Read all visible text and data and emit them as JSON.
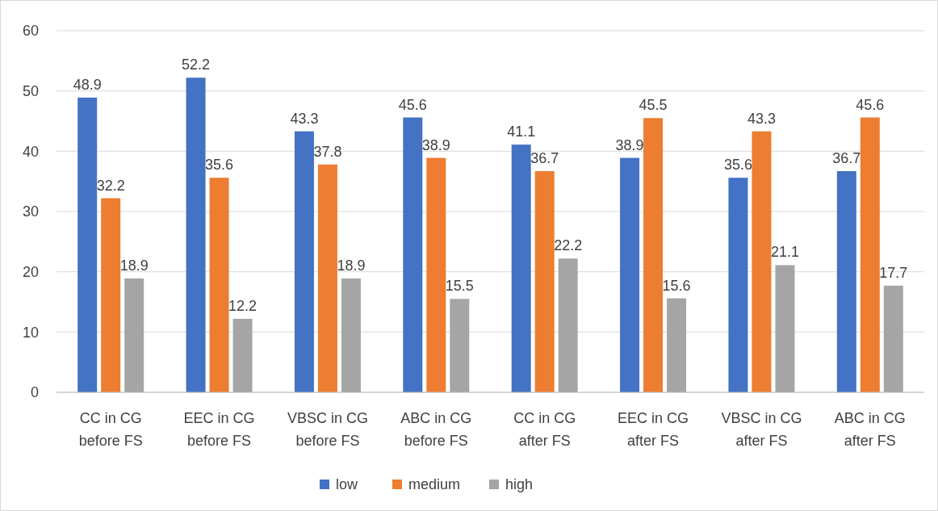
{
  "chart_data": {
    "type": "bar",
    "categories": [
      "CC in CG\nbefore FS",
      "EEC in CG\nbefore FS",
      "VBSC in CG\nbefore FS",
      "ABC in CG\nbefore FS",
      "CC in CG\nafter FS",
      "EEC in CG\nafter FS",
      "VBSC in CG\nafter FS",
      "ABC in CG\nafter FS"
    ],
    "series": [
      {
        "name": "low",
        "color": "#4472c4",
        "values": [
          48.9,
          52.2,
          43.3,
          45.6,
          41.1,
          38.9,
          35.6,
          36.7
        ]
      },
      {
        "name": "medium",
        "color": "#ed7d31",
        "values": [
          32.2,
          35.6,
          37.8,
          38.9,
          36.7,
          45.5,
          43.3,
          45.6
        ]
      },
      {
        "name": "high",
        "color": "#a5a5a5",
        "values": [
          18.9,
          12.2,
          18.9,
          15.5,
          22.2,
          15.6,
          21.1,
          17.7
        ]
      }
    ],
    "ylim": [
      0,
      60
    ],
    "yticks": [
      0,
      10,
      20,
      30,
      40,
      50,
      60
    ],
    "grid": "y",
    "legend": "bottom",
    "data_labels": true
  }
}
